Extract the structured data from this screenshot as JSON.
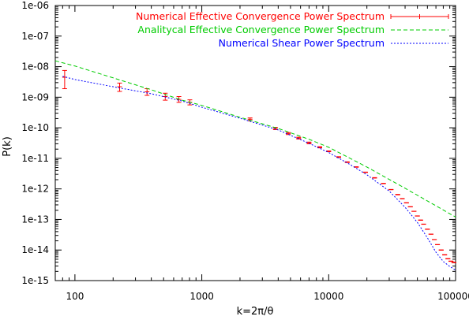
{
  "chart_data": {
    "type": "line",
    "title": "",
    "xlabel": "k=2π/θ",
    "ylabel": "P(k)",
    "xscale": "log",
    "yscale": "log",
    "xlim": [
      70,
      100000
    ],
    "ylim": [
      1e-15,
      1e-06
    ],
    "x_ticks": [
      {
        "value": 100,
        "label": "100"
      },
      {
        "value": 1000,
        "label": "1000"
      },
      {
        "value": 10000,
        "label": "10000"
      },
      {
        "value": 100000,
        "label": "100000"
      }
    ],
    "y_ticks": [
      {
        "value": 1e-15,
        "label": "1e-15"
      },
      {
        "value": 1e-14,
        "label": "1e-14"
      },
      {
        "value": 1e-13,
        "label": "1e-13"
      },
      {
        "value": 1e-12,
        "label": "1e-12"
      },
      {
        "value": 1e-11,
        "label": "1e-11"
      },
      {
        "value": 1e-10,
        "label": "1e-10"
      },
      {
        "value": 1e-09,
        "label": "1e-09"
      },
      {
        "value": 1e-08,
        "label": "1e-08"
      },
      {
        "value": 1e-07,
        "label": "1e-07"
      },
      {
        "value": 1e-06,
        "label": "1e-06"
      }
    ],
    "grid": false,
    "legend_position": "top-right",
    "series": [
      {
        "name": "Numerical Effective Convergence Power Spectrum",
        "color": "#ff0000",
        "style": "errorbars",
        "x": [
          83,
          225,
          370,
          515,
          660,
          805,
          2400,
          3800,
          4800,
          5800,
          7000,
          8500,
          10000,
          12000,
          14000,
          16500,
          19500,
          23000,
          27000,
          31000,
          35000,
          38000,
          41000,
          44000,
          47000,
          50000,
          53000,
          56000,
          60000,
          64000,
          68000,
          72000,
          77000,
          82000,
          87000,
          92000,
          97000
        ],
        "y": [
          4.5e-09,
          2.2e-09,
          1.5e-09,
          1.05e-09,
          8.5e-10,
          6.8e-10,
          1.9e-10,
          9.5e-11,
          6.5e-11,
          4.6e-11,
          3.2e-11,
          2.3e-11,
          1.7e-11,
          1.1e-11,
          7.5e-12,
          5.2e-12,
          3.5e-12,
          2.3e-12,
          1.5e-12,
          9.5e-13,
          6.5e-13,
          4.8e-13,
          3.5e-13,
          2.6e-13,
          1.85e-13,
          1.3e-13,
          9.5e-14,
          7e-14,
          4.8e-14,
          3.3e-14,
          2.2e-14,
          1.5e-14,
          1e-14,
          7e-15,
          5.2e-15,
          4.3e-15,
          3.9e-15
        ],
        "y_low": [
          1.9e-09,
          1.55e-09,
          1.15e-09,
          8e-10,
          6.8e-10,
          5.6e-10,
          1.7e-10,
          8.7e-11,
          6e-11,
          4.3e-11,
          3e-11,
          2.2e-11,
          1.65e-11,
          1.07e-11,
          7.3e-12,
          5.1e-12,
          3.45e-12,
          2.26e-12,
          1.48e-12,
          9.4e-13,
          6.4e-13,
          4.75e-13,
          3.47e-13,
          2.58e-13,
          1.84e-13,
          1.29e-13,
          9.4e-14,
          6.95e-14,
          4.77e-14,
          3.28e-14,
          2.19e-14,
          1.49e-14,
          9.95e-15,
          6.95e-15,
          5.15e-15,
          4.25e-15,
          3.85e-15
        ],
        "y_high": [
          7.5e-09,
          2.9e-09,
          1.9e-09,
          1.35e-09,
          1.05e-09,
          8.2e-10,
          2.1e-10,
          1.03e-10,
          7e-11,
          4.9e-11,
          3.4e-11,
          2.4e-11,
          1.75e-11,
          1.13e-11,
          7.7e-12,
          5.3e-12,
          3.55e-12,
          2.34e-12,
          1.52e-12,
          9.6e-13,
          6.6e-13,
          4.85e-13,
          3.53e-13,
          2.62e-13,
          1.86e-13,
          1.31e-13,
          9.6e-14,
          7.05e-14,
          4.83e-14,
          3.32e-14,
          2.21e-14,
          1.51e-14,
          1.005e-14,
          7.05e-15,
          5.25e-15,
          4.35e-15,
          3.95e-15
        ]
      },
      {
        "name": "Analitycal Effective Convergence Power Spectrum",
        "color": "#00cc00",
        "style": "dashed",
        "x": [
          70,
          100,
          200,
          400,
          700,
          1000,
          2000,
          4000,
          7000,
          10000,
          20000,
          40000,
          70000,
          100000
        ],
        "y": [
          1.55e-08,
          1.05e-08,
          4.3e-09,
          1.75e-09,
          8e-10,
          5.4e-10,
          2.2e-10,
          9.5e-11,
          4.2e-11,
          2.3e-11,
          5.2e-12,
          1.05e-12,
          2.8e-13,
          1.2e-13
        ]
      },
      {
        "name": "Numerical Shear Power Spectrum",
        "color": "#0000ff",
        "style": "dotted",
        "x": [
          80,
          100,
          200,
          400,
          700,
          1000,
          2000,
          4000,
          7000,
          10000,
          15000,
          20000,
          30000,
          40000,
          50000,
          60000,
          70000,
          80000,
          90000,
          100000
        ],
        "y": [
          4.8e-09,
          3.8e-09,
          2.2e-09,
          1.3e-09,
          7.5e-10,
          4.7e-10,
          2.05e-10,
          8.5e-11,
          3.1e-11,
          1.55e-11,
          6e-12,
          2.9e-12,
          8.5e-13,
          2.5e-13,
          8e-14,
          2.5e-14,
          8.5e-15,
          4.2e-15,
          2.9e-15,
          2.2e-15
        ]
      }
    ]
  }
}
